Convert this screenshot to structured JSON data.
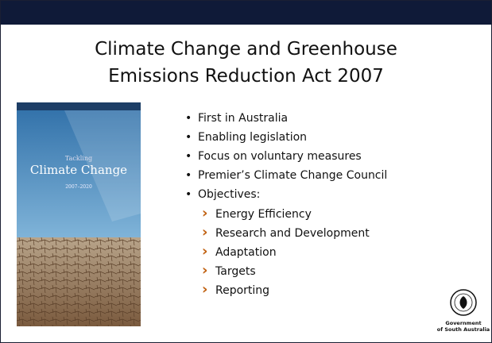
{
  "header": {
    "title_lines": [
      "Climate Change and Greenhouse",
      "Emissions Reduction Act 2007"
    ]
  },
  "cover": {
    "texts": [
      "Tackling",
      "Climate Change",
      "2007–2020"
    ]
  },
  "bullets": [
    "First in Australia",
    "Enabling legislation",
    "Focus on voluntary measures",
    "Premier’s Climate Change Council",
    "Objectives:"
  ],
  "sub_bullets": [
    "Energy Efficiency",
    "Research and Development",
    "Adaptation",
    "Targets",
    "Reporting"
  ],
  "logo": {
    "lines": [
      "Government",
      "of South Australia"
    ]
  }
}
